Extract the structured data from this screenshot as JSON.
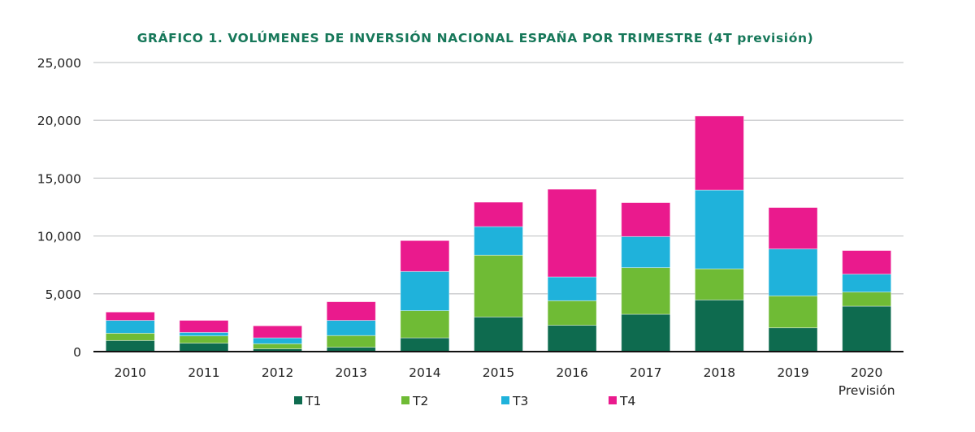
{
  "chart_data": {
    "type": "bar",
    "stacked": true,
    "title": "GRÁFICO 1. VOLÚMENES DE INVERSIÓN NACIONAL ESPAÑA POR TRIMESTRE (4T previsión)",
    "xlabel": "",
    "ylabel": "",
    "categories": [
      "2010",
      "2011",
      "2012",
      "2013",
      "2014",
      "2015",
      "2016",
      "2017",
      "2018",
      "2019",
      "2020"
    ],
    "category_sublabels": {
      "2020": "Previsión"
    },
    "ylim": [
      0,
      25000
    ],
    "yticks": [
      0,
      5000,
      10000,
      15000,
      20000,
      25000
    ],
    "ytick_labels": [
      "0",
      "5,000",
      "10,000",
      "15,000",
      "20,000",
      "25,000"
    ],
    "grid": true,
    "legend_position": "bottom",
    "series": [
      {
        "name": "T1",
        "color": "#0e6b4f",
        "values": [
          960,
          730,
          240,
          380,
          1190,
          3000,
          2280,
          3230,
          4470,
          2060,
          3930
        ]
      },
      {
        "name": "T2",
        "color": "#6fbb35",
        "values": [
          630,
          630,
          440,
          1010,
          2350,
          5340,
          2120,
          4030,
          2690,
          2760,
          1220
        ]
      },
      {
        "name": "T3",
        "color": "#1fb2db",
        "values": [
          1110,
          300,
          510,
          1310,
          3390,
          2470,
          2060,
          2690,
          6810,
          4060,
          1550
        ]
      },
      {
        "name": "T4",
        "color": "#ea1a8d",
        "values": [
          720,
          1040,
          1040,
          1610,
          2670,
          2110,
          7580,
          2930,
          6400,
          3580,
          2040
        ]
      }
    ],
    "title_color": "#17785a"
  }
}
